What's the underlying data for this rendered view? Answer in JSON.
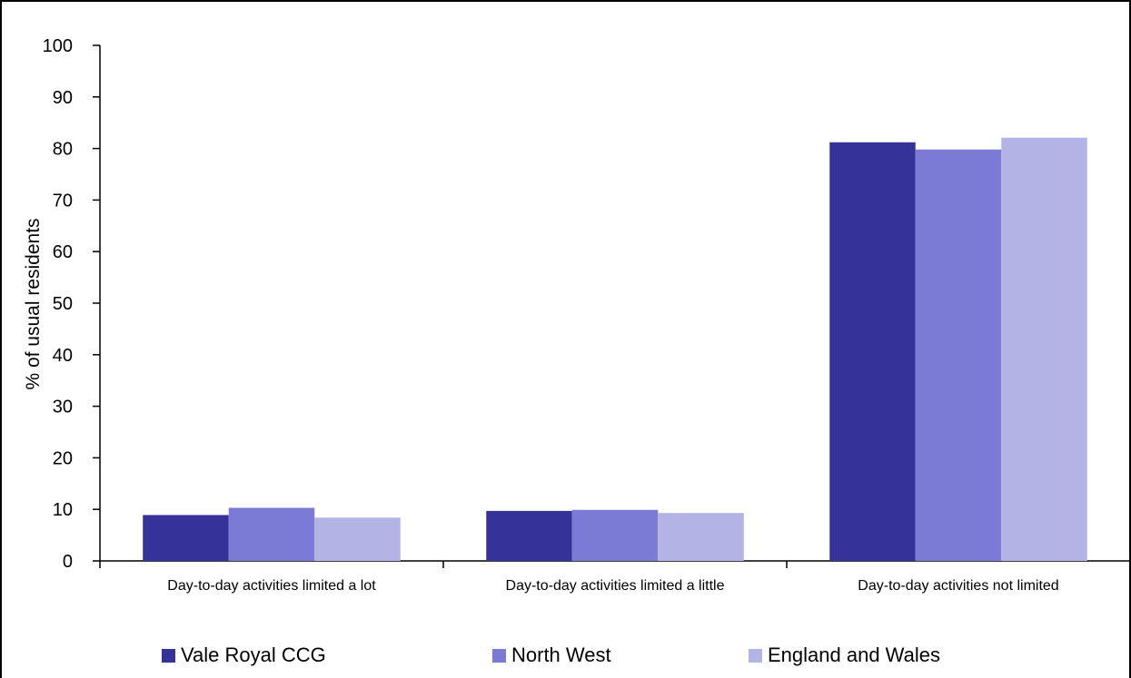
{
  "chart_data": {
    "type": "bar",
    "title": "",
    "xlabel": "",
    "ylabel": "% of usual residents",
    "ylim": [
      0,
      100
    ],
    "yticks": [
      0,
      10,
      20,
      30,
      40,
      50,
      60,
      70,
      80,
      90,
      100
    ],
    "categories": [
      "Day-to-day activities limited a lot",
      "Day-to-day activities limited a little",
      "Day-to-day activities not limited"
    ],
    "series": [
      {
        "name": "Vale Royal CCG",
        "color": "#35339a",
        "values": [
          8.9,
          9.7,
          81.2
        ]
      },
      {
        "name": "North West",
        "color": "#7b7bd6",
        "values": [
          10.3,
          9.9,
          79.8
        ]
      },
      {
        "name": "England and Wales",
        "color": "#b3b3e6",
        "values": [
          8.4,
          9.3,
          82.1
        ]
      }
    ],
    "grid": false,
    "legend_position": "bottom"
  }
}
